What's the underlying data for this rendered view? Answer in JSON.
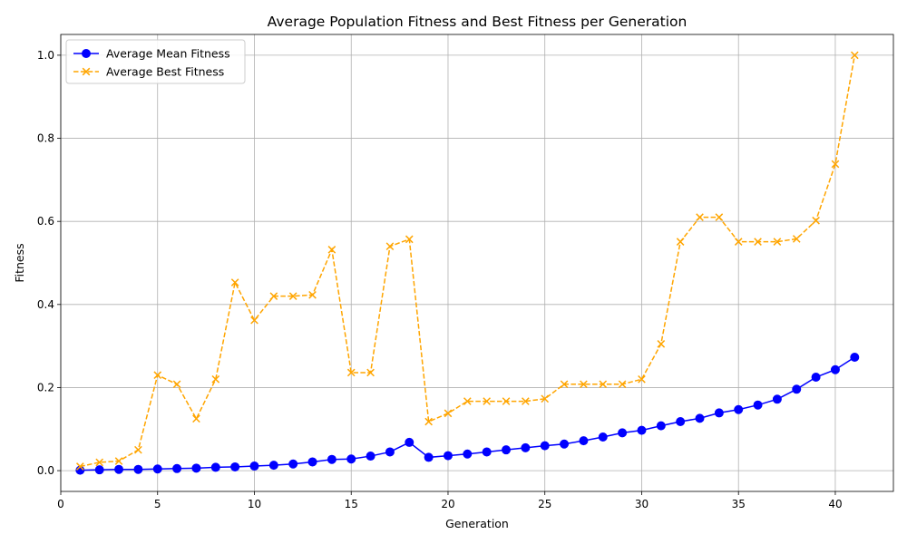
{
  "chart_data": {
    "type": "line",
    "title": "Average Population Fitness and Best Fitness per Generation",
    "xlabel": "Generation",
    "ylabel": "Fitness",
    "xlim": [
      0,
      43
    ],
    "ylim": [
      -0.05,
      1.05
    ],
    "xticks": [
      0,
      5,
      10,
      15,
      20,
      25,
      30,
      35,
      40
    ],
    "yticks": [
      0.0,
      0.2,
      0.4,
      0.6,
      0.8,
      1.0
    ],
    "xtick_labels": [
      "0",
      "5",
      "10",
      "15",
      "20",
      "25",
      "30",
      "35",
      "40"
    ],
    "ytick_labels": [
      "0.0",
      "0.2",
      "0.4",
      "0.6",
      "0.8",
      "1.0"
    ],
    "grid": true,
    "legend_position": "top-left",
    "x": [
      1,
      2,
      3,
      4,
      5,
      6,
      7,
      8,
      9,
      10,
      11,
      12,
      13,
      14,
      15,
      16,
      17,
      18,
      19,
      20,
      21,
      22,
      23,
      24,
      25,
      26,
      27,
      28,
      29,
      30,
      31,
      32,
      33,
      34,
      35,
      36,
      37,
      38,
      39,
      40,
      41
    ],
    "series": [
      {
        "name": "Average Mean Fitness",
        "color": "#0000ff",
        "marker": "circle",
        "linestyle": "solid",
        "values": [
          0.001,
          0.002,
          0.003,
          0.003,
          0.004,
          0.005,
          0.006,
          0.008,
          0.009,
          0.011,
          0.013,
          0.016,
          0.021,
          0.027,
          0.028,
          0.035,
          0.045,
          0.068,
          0.032,
          0.036,
          0.04,
          0.045,
          0.05,
          0.055,
          0.06,
          0.064,
          0.072,
          0.081,
          0.091,
          0.097,
          0.108,
          0.118,
          0.126,
          0.139,
          0.147,
          0.158,
          0.172,
          0.196,
          0.225,
          0.243,
          0.273
        ]
      },
      {
        "name": "Average Best Fitness",
        "color": "#ffa500",
        "marker": "x",
        "linestyle": "dashed",
        "values": [
          0.01,
          0.02,
          0.023,
          0.05,
          0.23,
          0.208,
          0.125,
          0.22,
          0.453,
          0.362,
          0.42,
          0.42,
          0.423,
          0.532,
          0.236,
          0.236,
          0.54,
          0.557,
          0.118,
          0.138,
          0.167,
          0.167,
          0.167,
          0.167,
          0.173,
          0.208,
          0.208,
          0.208,
          0.208,
          0.22,
          0.305,
          0.551,
          0.61,
          0.61,
          0.551,
          0.551,
          0.551,
          0.558,
          0.602,
          0.738,
          1.0
        ]
      }
    ]
  }
}
